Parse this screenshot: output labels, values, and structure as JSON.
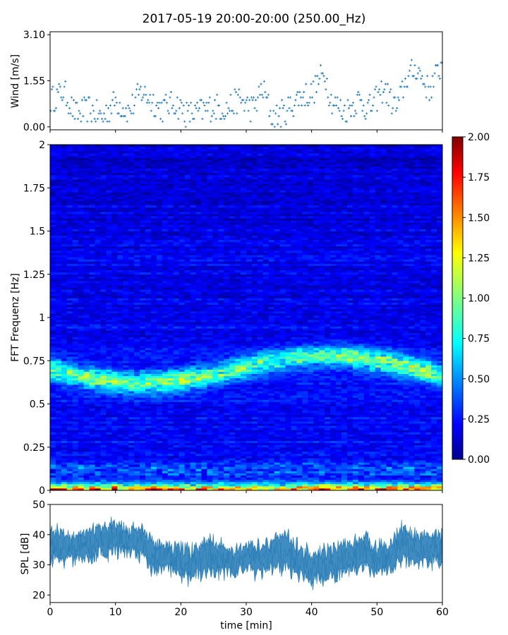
{
  "title": "2017-05-19 20:00-20:00 (250.00_Hz)",
  "chart_data": [
    {
      "panel": "wind",
      "type": "scatter",
      "ylabel": "Wind [m/s]",
      "xlim": [
        0,
        60
      ],
      "ylim": [
        -0.1,
        3.2
      ],
      "yticks": [
        0.0,
        1.55,
        3.1
      ],
      "ytick_labels": [
        "0.00",
        "1.55",
        "3.10"
      ],
      "marker": "+",
      "color": "#1f77b4",
      "x_minutes": [
        0,
        2,
        4,
        6,
        8,
        10,
        12,
        14,
        15.5,
        17,
        19,
        21,
        23,
        25,
        27,
        29,
        31,
        32.5,
        34,
        36,
        38,
        40,
        41,
        42,
        43,
        45,
        47,
        49,
        51,
        53,
        54.5,
        56,
        58,
        60
      ],
      "values": [
        0.9,
        1.2,
        0.4,
        0.6,
        0.3,
        0.9,
        0.5,
        1.2,
        0.9,
        0.6,
        0.8,
        0.4,
        0.5,
        0.7,
        0.6,
        0.9,
        0.6,
        1.3,
        0.3,
        0.5,
        1.0,
        1.1,
        1.5,
        1.8,
        0.9,
        0.5,
        0.9,
        0.6,
        1.3,
        0.6,
        1.6,
        2.0,
        1.2,
        2.2
      ]
    },
    {
      "panel": "spectrogram",
      "type": "heatmap",
      "ylabel": "FFT Frequenz [Hz]",
      "xlim": [
        0,
        60
      ],
      "ylim": [
        0,
        2
      ],
      "yticks": [
        0,
        0.25,
        0.5,
        0.75,
        1,
        1.25,
        1.5,
        1.75,
        2
      ],
      "ytick_labels": [
        "0",
        "0.25",
        "0.5",
        "0.75",
        "1",
        "1.25",
        "1.5",
        "1.75",
        "2"
      ],
      "colormap": "jet",
      "colorbar": {
        "range": [
          0.0,
          2.0
        ],
        "ticks": [
          "0.00",
          "0.25",
          "0.50",
          "0.75",
          "1.00",
          "1.25",
          "1.50",
          "1.75",
          "2.00"
        ]
      },
      "x_minutes": [
        0,
        5,
        10,
        15,
        20,
        25,
        30,
        35,
        40,
        45,
        50,
        55,
        60
      ],
      "band_075Hz_intensity": [
        0.75,
        0.9,
        0.85,
        0.8,
        0.95,
        0.8,
        0.85,
        0.75,
        0.8,
        0.85,
        0.9,
        0.95,
        0.85
      ],
      "band_0Hz_intensity": [
        1.6,
        1.5,
        1.7,
        1.6,
        1.5,
        1.6,
        1.4,
        1.5,
        1.6,
        1.7,
        1.5,
        1.6,
        1.6
      ],
      "background_intensity": 0.25
    },
    {
      "panel": "spl",
      "type": "area",
      "ylabel": "SPL [dB]",
      "xlabel": "time [min]",
      "xlim": [
        0,
        60
      ],
      "ylim": [
        17.5,
        50
      ],
      "xticks": [
        0,
        10,
        20,
        30,
        40,
        50,
        60
      ],
      "yticks": [
        20,
        30,
        40,
        50
      ],
      "color": "#1f77b4",
      "x_minutes": [
        0,
        2,
        4,
        6,
        8,
        10,
        12,
        14,
        16,
        18,
        20,
        22,
        24,
        26,
        28,
        30,
        32,
        34,
        36,
        38,
        40,
        42,
        44,
        46,
        48,
        50,
        52,
        54,
        56,
        58,
        60
      ],
      "values": [
        37,
        36,
        35,
        37,
        38,
        39,
        38,
        37,
        32,
        33,
        31,
        30,
        33,
        32,
        31,
        33,
        32,
        33,
        35,
        31,
        29,
        30,
        31,
        33,
        34,
        32,
        33,
        37,
        35,
        36,
        35
      ],
      "spread": [
        5,
        5,
        4,
        5,
        5,
        5,
        4,
        5,
        5,
        4,
        5,
        5,
        6,
        5,
        4,
        5,
        5,
        5,
        6,
        5,
        5,
        5,
        5,
        5,
        5,
        5,
        5,
        6,
        5,
        5,
        5
      ]
    }
  ]
}
